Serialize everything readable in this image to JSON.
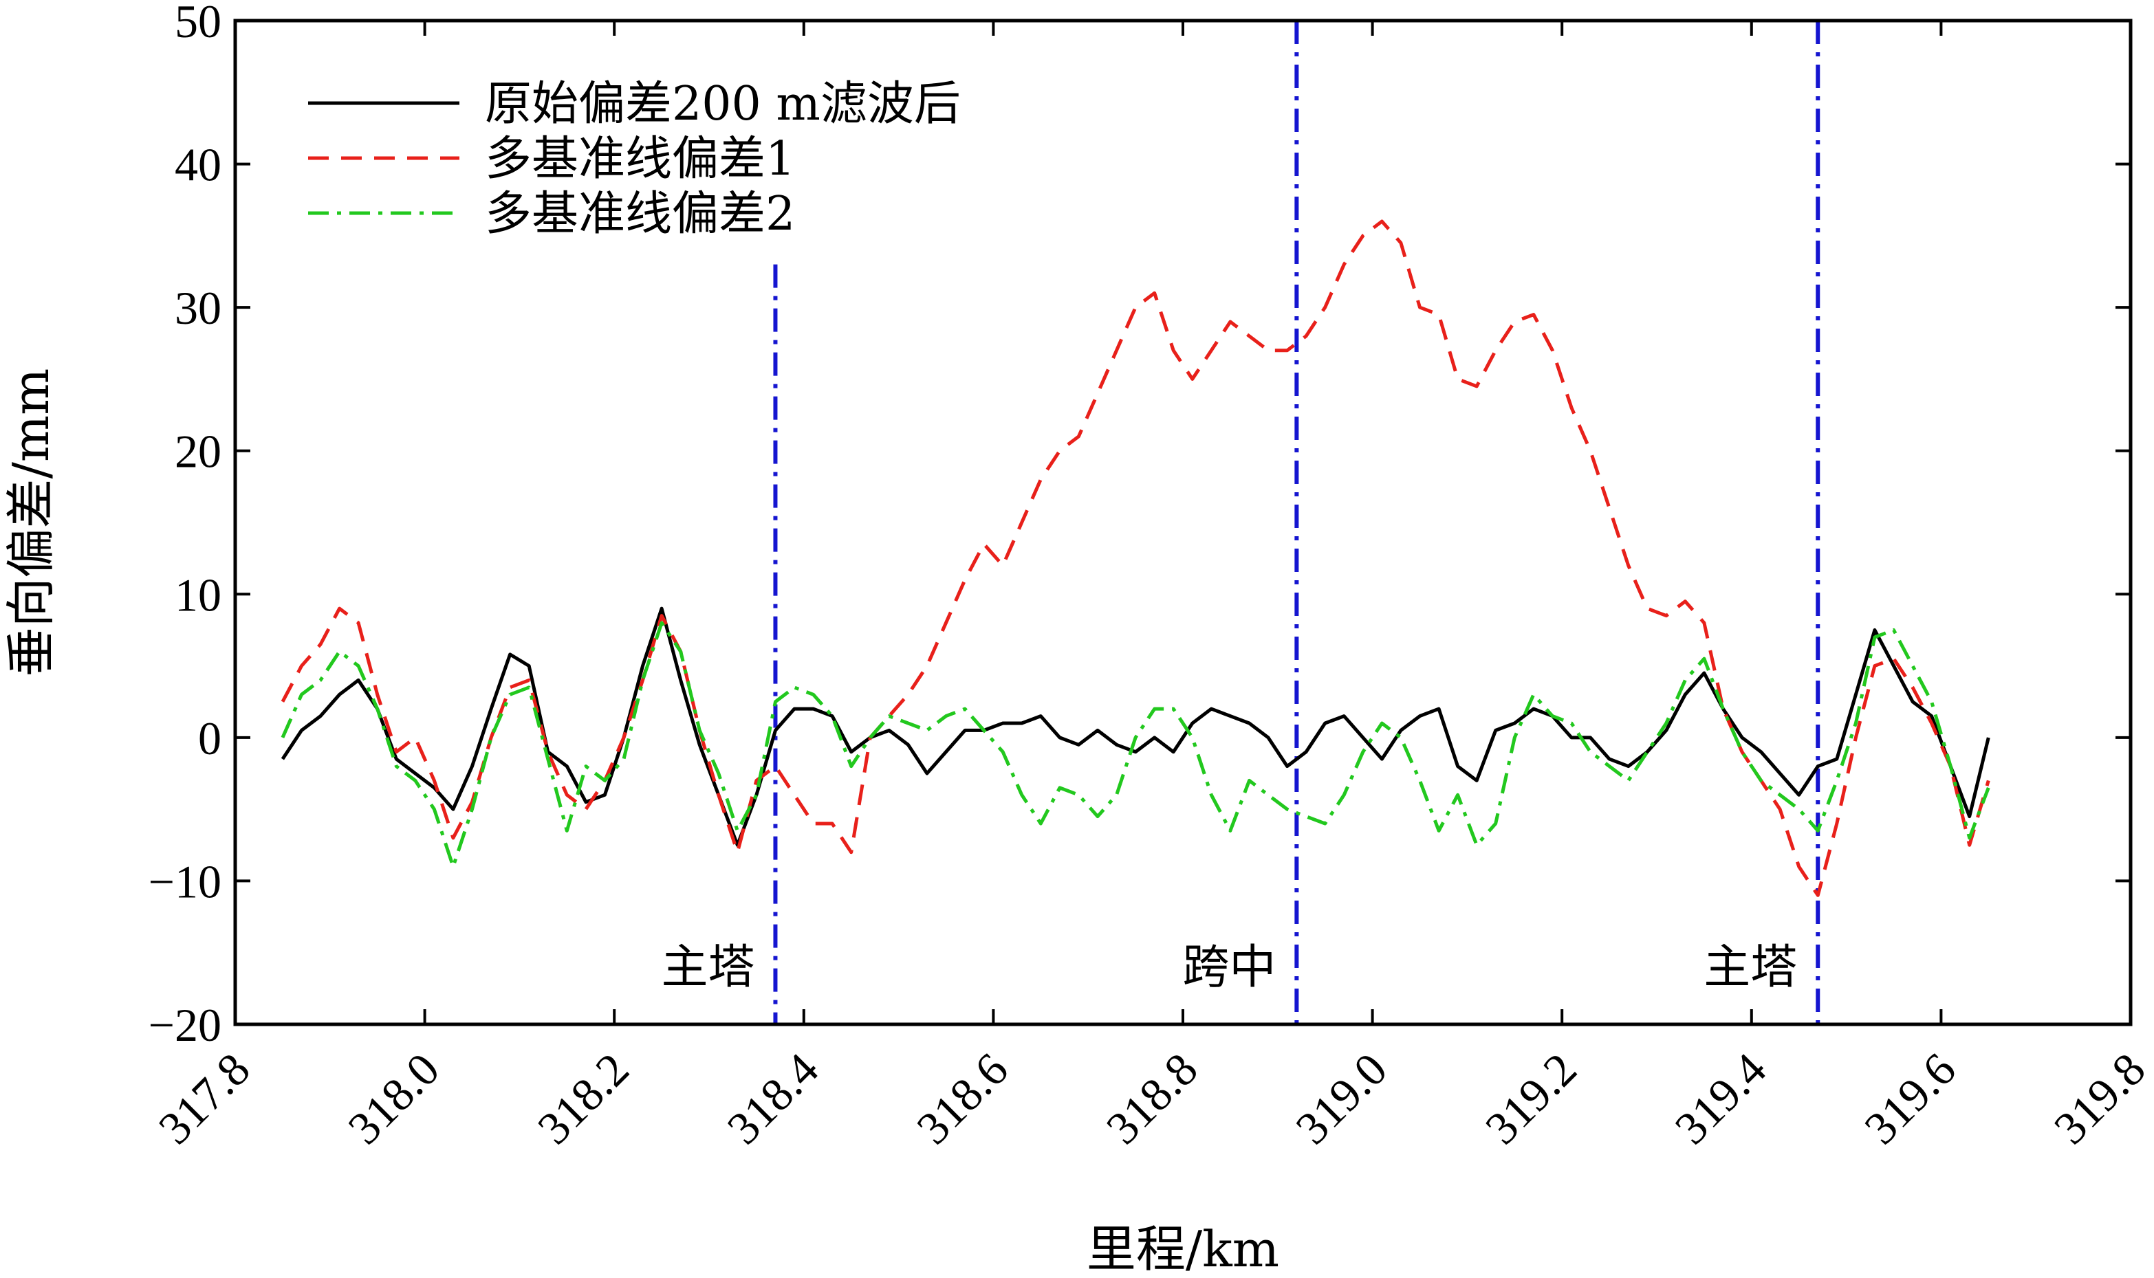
{
  "chart_data": {
    "type": "line",
    "title": "",
    "xlabel": "里程/km",
    "ylabel": "垂向偏差/mm",
    "xlim": [
      317.8,
      319.8
    ],
    "ylim": [
      -20,
      50
    ],
    "xticks": [
      "317.8",
      "318.0",
      "318.2",
      "318.4",
      "318.6",
      "318.8",
      "319.0",
      "319.2",
      "319.4",
      "319.6",
      "319.8"
    ],
    "yticks": [
      "−20",
      "−10",
      "0",
      "10",
      "20",
      "30",
      "40",
      "50"
    ],
    "grid": false,
    "legend_position": "top-left",
    "series": [
      {
        "name": "原始偏差200 m滤波后",
        "color": "#000000",
        "dash": "solid",
        "x": [
          317.85,
          317.87,
          317.89,
          317.91,
          317.93,
          317.95,
          317.97,
          317.99,
          318.01,
          318.03,
          318.05,
          318.07,
          318.09,
          318.11,
          318.13,
          318.15,
          318.17,
          318.19,
          318.21,
          318.23,
          318.25,
          318.27,
          318.29,
          318.31,
          318.33,
          318.35,
          318.37,
          318.39,
          318.41,
          318.43,
          318.45,
          318.47,
          318.49,
          318.51,
          318.53,
          318.55,
          318.57,
          318.59,
          318.61,
          318.63,
          318.65,
          318.67,
          318.69,
          318.71,
          318.73,
          318.75,
          318.77,
          318.79,
          318.81,
          318.83,
          318.85,
          318.87,
          318.89,
          318.91,
          318.93,
          318.95,
          318.97,
          318.99,
          319.01,
          319.03,
          319.05,
          319.07,
          319.09,
          319.11,
          319.13,
          319.15,
          319.17,
          319.19,
          319.21,
          319.23,
          319.25,
          319.27,
          319.29,
          319.31,
          319.33,
          319.35,
          319.37,
          319.39,
          319.41,
          319.43,
          319.45,
          319.47,
          319.49,
          319.51,
          319.53,
          319.55,
          319.57,
          319.59,
          319.61,
          319.63,
          319.65
        ],
        "y": [
          -1.5,
          0.5,
          1.5,
          3.0,
          4.0,
          2.0,
          -1.5,
          -2.5,
          -3.5,
          -5.0,
          -2.0,
          2.0,
          5.8,
          5.0,
          -1.0,
          -2.0,
          -4.5,
          -4.0,
          0.0,
          5.0,
          9.0,
          4.0,
          -0.5,
          -4.0,
          -7.5,
          -4.0,
          0.5,
          2.0,
          2.0,
          1.5,
          -1.0,
          0.0,
          0.5,
          -0.5,
          -2.5,
          -1.0,
          0.5,
          0.5,
          1.0,
          1.0,
          1.5,
          0.0,
          -0.5,
          0.5,
          -0.5,
          -1.0,
          0.0,
          -1.0,
          1.0,
          2.0,
          1.5,
          1.0,
          0.0,
          -2.0,
          -1.0,
          1.0,
          1.5,
          0.0,
          -1.5,
          0.5,
          1.5,
          2.0,
          -2.0,
          -3.0,
          0.5,
          1.0,
          2.0,
          1.5,
          0.0,
          0.0,
          -1.5,
          -2.0,
          -1.0,
          0.5,
          3.0,
          4.5,
          2.0,
          0.0,
          -1.0,
          -2.5,
          -4.0,
          -2.0,
          -1.5,
          3.0,
          7.5,
          5.0,
          2.5,
          1.5,
          -2.0,
          -5.5,
          0.0
        ]
      },
      {
        "name": "多基准线偏差1",
        "color": "#e8201a",
        "dash": "dashed",
        "x": [
          317.85,
          317.87,
          317.89,
          317.91,
          317.93,
          317.95,
          317.97,
          317.99,
          318.01,
          318.03,
          318.05,
          318.07,
          318.09,
          318.11,
          318.13,
          318.15,
          318.17,
          318.19,
          318.21,
          318.23,
          318.25,
          318.27,
          318.29,
          318.31,
          318.33,
          318.35,
          318.37,
          318.39,
          318.41,
          318.43,
          318.45,
          318.47,
          318.49,
          318.51,
          318.53,
          318.55,
          318.57,
          318.59,
          318.61,
          318.63,
          318.65,
          318.67,
          318.69,
          318.71,
          318.73,
          318.75,
          318.77,
          318.79,
          318.81,
          318.83,
          318.85,
          318.87,
          318.89,
          318.91,
          318.93,
          318.95,
          318.97,
          318.99,
          319.01,
          319.03,
          319.05,
          319.07,
          319.09,
          319.11,
          319.13,
          319.15,
          319.17,
          319.19,
          319.21,
          319.23,
          319.25,
          319.27,
          319.29,
          319.31,
          319.33,
          319.35,
          319.37,
          319.39,
          319.41,
          319.43,
          319.45,
          319.47,
          319.49,
          319.51,
          319.53,
          319.55,
          319.57,
          319.59,
          319.61,
          319.63,
          319.65
        ],
        "y": [
          2.5,
          5.0,
          6.5,
          9.0,
          8.0,
          3.0,
          -1.0,
          0.0,
          -3.0,
          -7.0,
          -4.5,
          0.0,
          3.5,
          4.0,
          -1.0,
          -4.0,
          -5.0,
          -3.0,
          0.0,
          4.0,
          8.5,
          6.0,
          0.5,
          -4.0,
          -8.0,
          -3.0,
          -2.0,
          -4.0,
          -6.0,
          -6.0,
          -8.0,
          0.0,
          1.5,
          3.0,
          5.0,
          8.0,
          11.0,
          13.5,
          12.0,
          15.0,
          18.0,
          20.0,
          21.0,
          24.0,
          27.0,
          30.0,
          31.0,
          27.0,
          25.0,
          27.0,
          29.0,
          28.0,
          27.0,
          27.0,
          28.0,
          30.0,
          33.0,
          35.0,
          36.0,
          34.5,
          30.0,
          29.5,
          25.0,
          24.5,
          27.0,
          29.0,
          29.5,
          27.0,
          23.0,
          20.0,
          16.0,
          12.0,
          9.0,
          8.5,
          9.5,
          8.0,
          2.0,
          -1.0,
          -3.0,
          -5.0,
          -9.0,
          -11.0,
          -6.0,
          0.0,
          5.0,
          5.5,
          3.5,
          1.0,
          -2.0,
          -7.5,
          -3.0
        ]
      },
      {
        "name": "多基准线偏差2",
        "color": "#22c81e",
        "dash": "dashdot",
        "x": [
          317.85,
          317.87,
          317.89,
          317.91,
          317.93,
          317.95,
          317.97,
          317.99,
          318.01,
          318.03,
          318.05,
          318.07,
          318.09,
          318.11,
          318.13,
          318.15,
          318.17,
          318.19,
          318.21,
          318.23,
          318.25,
          318.27,
          318.29,
          318.31,
          318.33,
          318.35,
          318.37,
          318.39,
          318.41,
          318.43,
          318.45,
          318.47,
          318.49,
          318.51,
          318.53,
          318.55,
          318.57,
          318.59,
          318.61,
          318.63,
          318.65,
          318.67,
          318.69,
          318.71,
          318.73,
          318.75,
          318.77,
          318.79,
          318.81,
          318.83,
          318.85,
          318.87,
          318.89,
          318.91,
          318.93,
          318.95,
          318.97,
          318.99,
          319.01,
          319.03,
          319.05,
          319.07,
          319.09,
          319.11,
          319.13,
          319.15,
          319.17,
          319.19,
          319.21,
          319.23,
          319.25,
          319.27,
          319.29,
          319.31,
          319.33,
          319.35,
          319.37,
          319.39,
          319.41,
          319.43,
          319.45,
          319.47,
          319.49,
          319.51,
          319.53,
          319.55,
          319.57,
          319.59,
          319.61,
          319.63,
          319.65
        ],
        "y": [
          0.0,
          3.0,
          4.0,
          6.0,
          5.0,
          2.0,
          -2.0,
          -3.0,
          -5.0,
          -9.0,
          -5.0,
          0.0,
          3.0,
          3.5,
          -1.5,
          -6.5,
          -2.0,
          -3.0,
          -1.5,
          4.0,
          8.0,
          6.0,
          0.5,
          -2.5,
          -6.5,
          -4.0,
          2.5,
          3.5,
          3.0,
          1.5,
          -2.0,
          0.0,
          1.5,
          1.0,
          0.5,
          1.5,
          2.0,
          0.5,
          -1.0,
          -4.0,
          -6.0,
          -3.5,
          -4.0,
          -5.5,
          -4.0,
          0.0,
          2.0,
          2.0,
          0.0,
          -4.0,
          -6.5,
          -3.0,
          -4.0,
          -5.0,
          -5.5,
          -6.0,
          -4.0,
          -1.0,
          1.0,
          0.0,
          -3.0,
          -6.5,
          -4.0,
          -7.5,
          -6.0,
          0.0,
          3.0,
          1.5,
          1.0,
          -1.0,
          -2.0,
          -3.0,
          -1.0,
          1.0,
          4.0,
          5.5,
          2.0,
          -1.0,
          -3.0,
          -4.0,
          -5.0,
          -6.5,
          -3.0,
          1.0,
          7.0,
          7.5,
          5.0,
          2.5,
          -2.0,
          -7.0,
          -3.5
        ]
      }
    ],
    "vlines": [
      318.37,
      318.92,
      319.47
    ],
    "vline_color": "#1515d0",
    "annotations": [
      {
        "text": "主塔",
        "x": 318.37
      },
      {
        "text": "跨中",
        "x": 318.92
      },
      {
        "text": "主塔",
        "x": 319.47
      }
    ]
  }
}
